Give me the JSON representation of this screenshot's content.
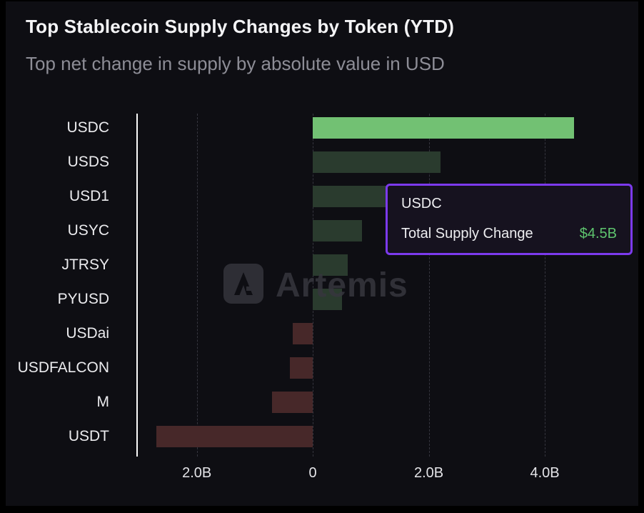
{
  "header": {
    "title": "Top Stablecoin Supply Changes by Token (YTD)",
    "subtitle": "Top net change in supply by absolute value in USD"
  },
  "watermark": {
    "text": "Artemis"
  },
  "tooltip": {
    "token": "USDC",
    "metric_label": "Total Supply Change",
    "value": "$4.5B",
    "value_color": "#5ec46e",
    "border_color": "#7c3aed",
    "background": "#16121f"
  },
  "chart_data": {
    "type": "bar",
    "orientation": "horizontal",
    "title": "Top Stablecoin Supply Changes by Token (YTD)",
    "subtitle": "Top net change in supply by absolute value in USD",
    "categories": [
      "USDC",
      "USDS",
      "USD1",
      "USYC",
      "JTRSY",
      "PYUSD",
      "USDai",
      "USDFALCON",
      "M",
      "USDT"
    ],
    "values": [
      4.5,
      2.2,
      1.3,
      0.85,
      0.6,
      0.5,
      -0.35,
      -0.4,
      -0.7,
      -2.7
    ],
    "unit": "billions USD",
    "xlabel": "",
    "ylabel": "",
    "xlim": [
      -3.03,
      5.44
    ],
    "ticks": [
      {
        "value": -2,
        "label": "2.0B"
      },
      {
        "value": 0,
        "label": "0"
      },
      {
        "value": 2,
        "label": "2.0B"
      },
      {
        "value": 4,
        "label": "4.0B"
      }
    ],
    "grid": "vertical-dashed",
    "legend": false,
    "highlight_index": 0,
    "colors": {
      "highlight": "#72c173",
      "positive": "#2a3b2e",
      "negative": "#472829",
      "gridline": "#35353e",
      "axis_line": "#fafafa",
      "panel_background": "#0e0e13",
      "title": "#f4f4f6",
      "subtitle": "#8d8d96"
    }
  }
}
